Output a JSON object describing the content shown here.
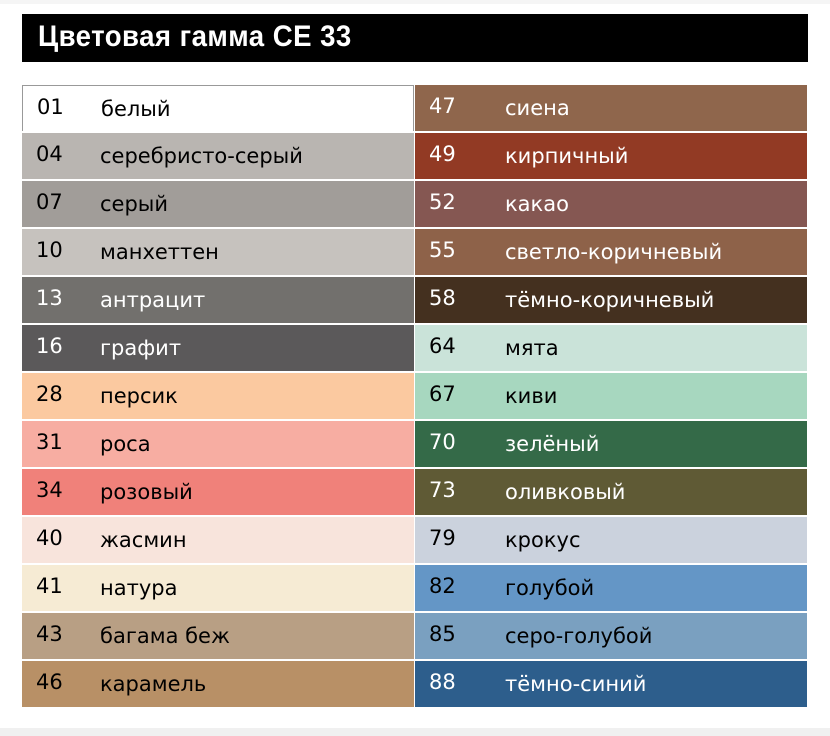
{
  "title": "Цветовая гамма CE 33",
  "left": [
    {
      "code": "01",
      "name": "белый",
      "color": "#ffffff",
      "text": "#000000"
    },
    {
      "code": "04",
      "name": "серебристо-серый",
      "color": "#b9b5b1",
      "text": "#000000"
    },
    {
      "code": "07",
      "name": "серый",
      "color": "#a19d99",
      "text": "#000000"
    },
    {
      "code": "10",
      "name": "манхеттен",
      "color": "#c6c2be",
      "text": "#000000"
    },
    {
      "code": "13",
      "name": "антрацит",
      "color": "#72706d",
      "text": "#ffffff"
    },
    {
      "code": "16",
      "name": "графит",
      "color": "#5b595a",
      "text": "#ffffff"
    },
    {
      "code": "28",
      "name": "персик",
      "color": "#fbc9a0",
      "text": "#000000"
    },
    {
      "code": "31",
      "name": "роса",
      "color": "#f7ada2",
      "text": "#000000"
    },
    {
      "code": "34",
      "name": "розовый",
      "color": "#f0817a",
      "text": "#000000"
    },
    {
      "code": "40",
      "name": "жасмин",
      "color": "#f8e4dc",
      "text": "#000000"
    },
    {
      "code": "41",
      "name": "натура",
      "color": "#f6ebd4",
      "text": "#000000"
    },
    {
      "code": "43",
      "name": "багама беж",
      "color": "#b89f84",
      "text": "#000000"
    },
    {
      "code": "46",
      "name": "карамель",
      "color": "#b89066",
      "text": "#000000"
    }
  ],
  "right": [
    {
      "code": "47",
      "name": "сиена",
      "color": "#8f664c",
      "text": "#ffffff"
    },
    {
      "code": "49",
      "name": "кирпичный",
      "color": "#923a24",
      "text": "#ffffff"
    },
    {
      "code": "52",
      "name": "какао",
      "color": "#855752",
      "text": "#ffffff"
    },
    {
      "code": "55",
      "name": "светло-коричневый",
      "color": "#8e6249",
      "text": "#ffffff"
    },
    {
      "code": "58",
      "name": "тёмно-коричневый",
      "color": "#44301f",
      "text": "#ffffff"
    },
    {
      "code": "64",
      "name": "мята",
      "color": "#cae3d9",
      "text": "#000000"
    },
    {
      "code": "67",
      "name": "киви",
      "color": "#a7d7bf",
      "text": "#000000"
    },
    {
      "code": "70",
      "name": "зелёный",
      "color": "#346a48",
      "text": "#ffffff"
    },
    {
      "code": "73",
      "name": "оливковый",
      "color": "#5f5a35",
      "text": "#ffffff"
    },
    {
      "code": "79",
      "name": "крокус",
      "color": "#cbd2dd",
      "text": "#000000"
    },
    {
      "code": "82",
      "name": "голубой",
      "color": "#6496c6",
      "text": "#000000"
    },
    {
      "code": "85",
      "name": "серо-голубой",
      "color": "#7aa0c0",
      "text": "#000000"
    },
    {
      "code": "88",
      "name": "тёмно-синий",
      "color": "#2d5e8c",
      "text": "#ffffff"
    }
  ]
}
